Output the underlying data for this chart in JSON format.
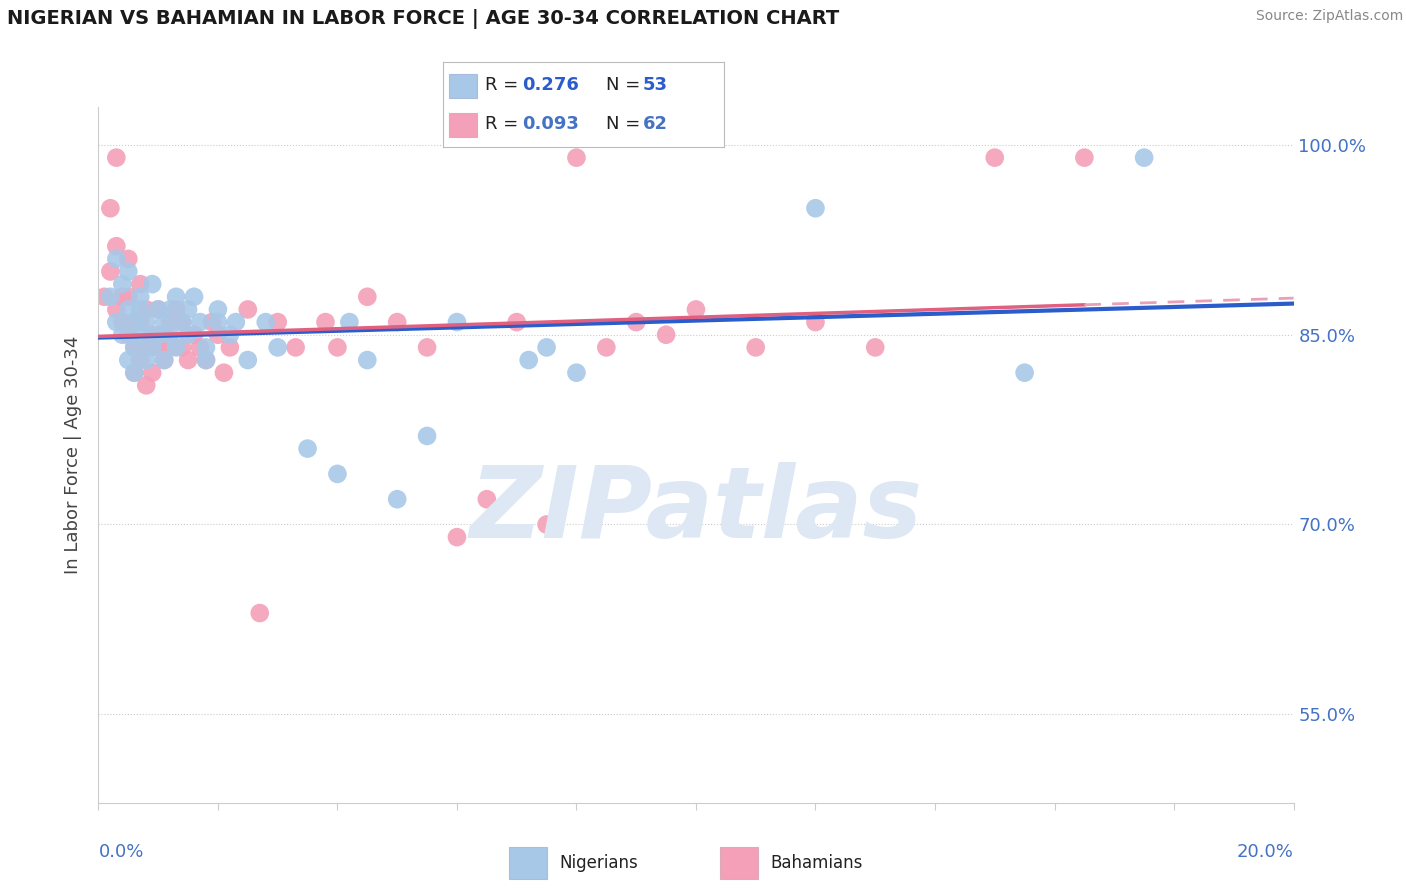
{
  "title": "NIGERIAN VS BAHAMIAN IN LABOR FORCE | AGE 30-34 CORRELATION CHART",
  "source": "Source: ZipAtlas.com",
  "ylabel": "In Labor Force | Age 30-34",
  "xlim": [
    0.0,
    0.2
  ],
  "ylim": [
    0.48,
    1.03
  ],
  "yticks": [
    0.55,
    0.7,
    0.85,
    1.0
  ],
  "ytick_labels": [
    "55.0%",
    "70.0%",
    "85.0%",
    "100.0%"
  ],
  "nigerian_color": "#a8c8e8",
  "bahamian_color": "#f4a0b8",
  "nigerian_line_color": "#2a5ccc",
  "bahamian_line_color": "#e06080",
  "bahamian_dash_color": "#e8a0b8",
  "axis_color": "#4472c4",
  "grid_color": "#cccccc",
  "watermark": "ZIPatlas",
  "watermark_color": "#dde8f4",
  "legend_R_nig": "0.276",
  "legend_N_nig": "53",
  "legend_R_bah": "0.093",
  "legend_N_bah": "62",
  "nigerian_x": [
    0.002,
    0.003,
    0.003,
    0.004,
    0.004,
    0.005,
    0.005,
    0.005,
    0.006,
    0.006,
    0.006,
    0.007,
    0.007,
    0.007,
    0.008,
    0.008,
    0.009,
    0.009,
    0.01,
    0.01,
    0.011,
    0.011,
    0.012,
    0.012,
    0.013,
    0.013,
    0.014,
    0.015,
    0.015,
    0.016,
    0.017,
    0.018,
    0.018,
    0.02,
    0.02,
    0.022,
    0.023,
    0.025,
    0.028,
    0.03,
    0.035,
    0.04,
    0.042,
    0.045,
    0.05,
    0.055,
    0.06,
    0.072,
    0.075,
    0.08,
    0.12,
    0.155,
    0.175
  ],
  "nigerian_y": [
    0.88,
    0.91,
    0.86,
    0.89,
    0.85,
    0.87,
    0.83,
    0.9,
    0.86,
    0.84,
    0.82,
    0.88,
    0.85,
    0.87,
    0.86,
    0.83,
    0.89,
    0.84,
    0.87,
    0.85,
    0.86,
    0.83,
    0.85,
    0.87,
    0.88,
    0.84,
    0.86,
    0.85,
    0.87,
    0.88,
    0.86,
    0.84,
    0.83,
    0.87,
    0.86,
    0.85,
    0.86,
    0.83,
    0.86,
    0.84,
    0.76,
    0.74,
    0.86,
    0.83,
    0.72,
    0.77,
    0.86,
    0.83,
    0.84,
    0.82,
    0.95,
    0.82,
    0.99
  ],
  "bahamian_x": [
    0.001,
    0.002,
    0.002,
    0.003,
    0.003,
    0.003,
    0.004,
    0.004,
    0.005,
    0.005,
    0.005,
    0.006,
    0.006,
    0.006,
    0.007,
    0.007,
    0.007,
    0.008,
    0.008,
    0.008,
    0.009,
    0.009,
    0.01,
    0.01,
    0.011,
    0.011,
    0.012,
    0.012,
    0.013,
    0.014,
    0.014,
    0.015,
    0.016,
    0.017,
    0.018,
    0.019,
    0.02,
    0.021,
    0.022,
    0.025,
    0.027,
    0.03,
    0.033,
    0.038,
    0.04,
    0.045,
    0.05,
    0.055,
    0.06,
    0.065,
    0.07,
    0.075,
    0.08,
    0.085,
    0.09,
    0.095,
    0.1,
    0.11,
    0.12,
    0.13,
    0.15,
    0.165
  ],
  "bahamian_y": [
    0.88,
    0.95,
    0.9,
    0.99,
    0.92,
    0.87,
    0.88,
    0.86,
    0.91,
    0.88,
    0.85,
    0.86,
    0.84,
    0.82,
    0.89,
    0.86,
    0.83,
    0.87,
    0.84,
    0.81,
    0.85,
    0.82,
    0.87,
    0.84,
    0.85,
    0.83,
    0.86,
    0.84,
    0.87,
    0.86,
    0.84,
    0.83,
    0.85,
    0.84,
    0.83,
    0.86,
    0.85,
    0.82,
    0.84,
    0.87,
    0.63,
    0.86,
    0.84,
    0.86,
    0.84,
    0.88,
    0.86,
    0.84,
    0.69,
    0.72,
    0.86,
    0.7,
    0.99,
    0.84,
    0.86,
    0.85,
    0.87,
    0.84,
    0.86,
    0.84,
    0.99,
    0.99
  ]
}
